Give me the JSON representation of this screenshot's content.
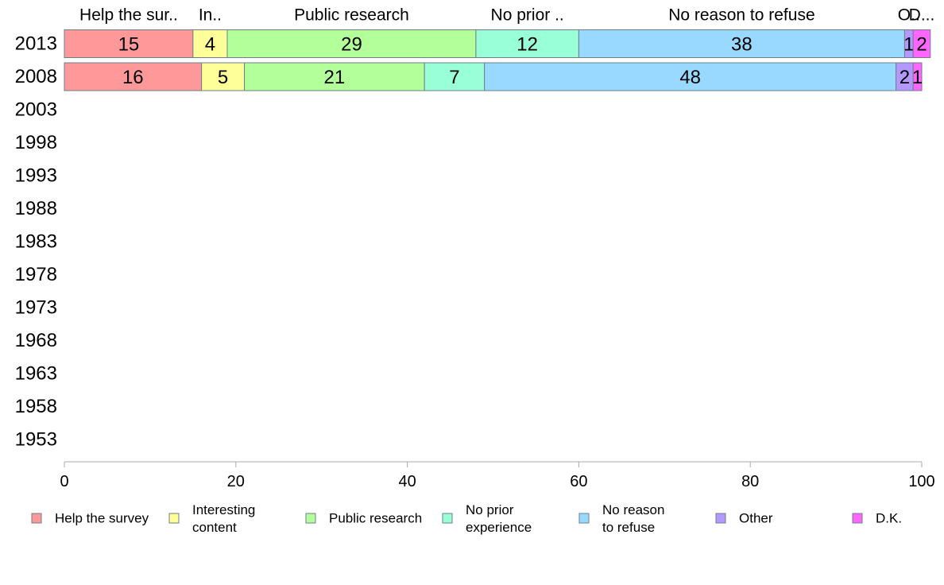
{
  "chart_data": {
    "type": "bar",
    "orientation": "horizontal",
    "stacked": true,
    "categories": [
      "2013",
      "2008",
      "2003",
      "1998",
      "1993",
      "1988",
      "1983",
      "1978",
      "1973",
      "1968",
      "1963",
      "1958",
      "1953"
    ],
    "series": [
      {
        "name": "Help the survey",
        "top_label": "Help the sur..",
        "color": "#ff9999",
        "values": [
          15,
          16,
          null,
          null,
          null,
          null,
          null,
          null,
          null,
          null,
          null,
          null,
          null
        ]
      },
      {
        "name": "Interesting\ncontent",
        "top_label": "In..",
        "color": "#ffff99",
        "values": [
          4,
          5,
          null,
          null,
          null,
          null,
          null,
          null,
          null,
          null,
          null,
          null,
          null
        ]
      },
      {
        "name": "Public research",
        "top_label": "Public research",
        "color": "#b3ff99",
        "values": [
          29,
          21,
          null,
          null,
          null,
          null,
          null,
          null,
          null,
          null,
          null,
          null,
          null
        ]
      },
      {
        "name": "No prior\nexperience",
        "top_label": "No prior ..",
        "color": "#99ffd9",
        "values": [
          12,
          7,
          null,
          null,
          null,
          null,
          null,
          null,
          null,
          null,
          null,
          null,
          null
        ]
      },
      {
        "name": "No reason\nto refuse",
        "top_label": "No reason to refuse",
        "color": "#99d9ff",
        "values": [
          38,
          48,
          null,
          null,
          null,
          null,
          null,
          null,
          null,
          null,
          null,
          null,
          null
        ]
      },
      {
        "name": "Other",
        "top_label": "O..",
        "color": "#b399ff",
        "values": [
          1,
          2,
          null,
          null,
          null,
          null,
          null,
          null,
          null,
          null,
          null,
          null,
          null
        ]
      },
      {
        "name": "D.K.",
        "top_label": "D...",
        "color": "#ff66ff",
        "values": [
          2,
          1,
          null,
          null,
          null,
          null,
          null,
          null,
          null,
          null,
          null,
          null,
          null
        ]
      }
    ],
    "xlim": [
      0,
      100
    ],
    "xticks": [
      0,
      20,
      40,
      60,
      80,
      100
    ],
    "xlabel": "",
    "ylabel": "",
    "title": "",
    "grid": false,
    "legend_position": "bottom"
  }
}
